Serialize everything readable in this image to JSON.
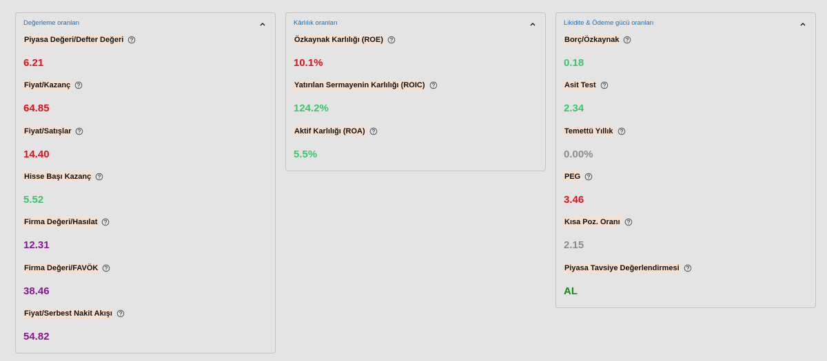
{
  "panels": [
    {
      "title": "Değerleme oranları",
      "items": [
        {
          "label": "Piyasa Değeri/Defter Değeri",
          "value": "6.21",
          "color": "#e3101c"
        },
        {
          "label": "Fiyat/Kazanç",
          "value": "64.85",
          "color": "#e3101c"
        },
        {
          "label": "Fiyat/Satışlar",
          "value": "14.40",
          "color": "#e3101c"
        },
        {
          "label": "Hisse Başı Kazanç",
          "value": "5.52",
          "color": "#3cc46c"
        },
        {
          "label": "Firma Değeri/Hasılat",
          "value": "12.31",
          "color": "#87178f"
        },
        {
          "label": "Firma Değeri/FAVÖK",
          "value": "38.46",
          "color": "#87178f"
        },
        {
          "label": "Fiyat/Serbest Nakit Akışı",
          "value": "54.82",
          "color": "#87178f"
        }
      ]
    },
    {
      "title": "Kârlılık oranları",
      "items": [
        {
          "label": "Özkaynak Karlılığı (ROE)",
          "value": "10.1%",
          "color": "#e3101c"
        },
        {
          "label": "Yatırılan Sermayenin Karlılığı (ROIC)",
          "value": "124.2%",
          "color": "#3cc46c"
        },
        {
          "label": "Aktif Karlılığı (ROA)",
          "value": "5.5%",
          "color": "#3cc46c"
        }
      ]
    },
    {
      "title": "Likidite & Ödeme gücü oranları",
      "items": [
        {
          "label": "Borç/Özkaynak",
          "value": "0.18",
          "color": "#3cc46c"
        },
        {
          "label": "Asit Test",
          "value": "2.34",
          "color": "#3cc46c"
        },
        {
          "label": "Temettü Yıllık",
          "value": "0.00%",
          "color": "#8c8c8c"
        },
        {
          "label": "PEG",
          "value": "3.46",
          "color": "#e3101c"
        },
        {
          "label": "Kısa Poz. Oranı",
          "value": "2.15",
          "color": "#8c8c8c"
        },
        {
          "label": "Piyasa Tavsiye Değerlendirmesi",
          "value": "AL",
          "color": "#148a14"
        }
      ]
    }
  ]
}
